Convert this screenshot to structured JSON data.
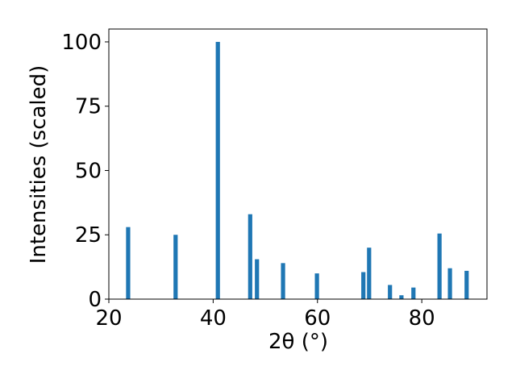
{
  "chart_data": {
    "type": "bar",
    "xlabel": "2θ (°)",
    "ylabel": "Intensities (scaled)",
    "x": [
      23.7,
      32.8,
      40.9,
      47.1,
      48.4,
      53.4,
      59.9,
      68.8,
      69.9,
      73.9,
      76.1,
      78.4,
      83.4,
      85.4,
      88.6
    ],
    "values": [
      28,
      25,
      100,
      33,
      15.5,
      14,
      10,
      10.5,
      20,
      5.5,
      1.5,
      4.5,
      25.5,
      12,
      11
    ],
    "color": "#1f77b4",
    "xlim": [
      20,
      92.5
    ],
    "xticks": [
      20,
      40,
      60,
      80
    ],
    "ylim": [
      0,
      105
    ],
    "yticks": [
      0,
      25,
      50,
      75,
      100
    ]
  }
}
